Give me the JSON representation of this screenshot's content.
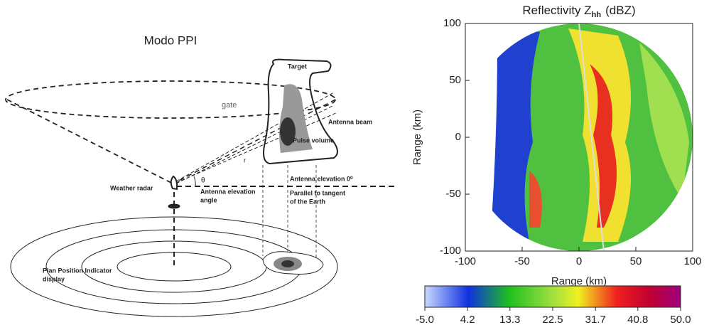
{
  "diagram": {
    "title": "Modo PPI",
    "labels": {
      "target": "Target",
      "gate": "gate",
      "antenna_beam": "Antenna beam",
      "pulse_volume": "Pulse volume",
      "weather_radar": "Weather radar",
      "elevation_angle_1": "Antenna elevation",
      "elevation_angle_2": "angle",
      "elevation_0": "Antenna elevation 0⁰",
      "parallel_1": "Parallel to tangent",
      "parallel_2": "of the Earth",
      "ppi_1": "Plan Position Indicator",
      "ppi_2": "display",
      "theta": "θ",
      "r": "r"
    }
  },
  "radar": {
    "title": "Reflectivity Z",
    "title_sub": "hh",
    "title_unit": "(dBZ)",
    "xlabel": "Range (km)",
    "ylabel": "Range (km)",
    "xlim": [
      -100,
      100
    ],
    "ylim": [
      -100,
      100
    ],
    "xticks": [
      -100,
      -50,
      0,
      50,
      100
    ],
    "yticks": [
      -100,
      -50,
      0,
      50,
      100
    ],
    "clim": [
      -5,
      50
    ],
    "cticks": [
      {
        "value": -5,
        "label": "-5.0"
      },
      {
        "value": 4.2,
        "label": "4.2"
      },
      {
        "value": 13.3,
        "label": "13.3"
      },
      {
        "value": 22.5,
        "label": "22.5"
      },
      {
        "value": 31.7,
        "label": "31.7"
      },
      {
        "value": 40.8,
        "label": "40.8"
      },
      {
        "value": 50,
        "label": "50.0"
      }
    ]
  }
}
